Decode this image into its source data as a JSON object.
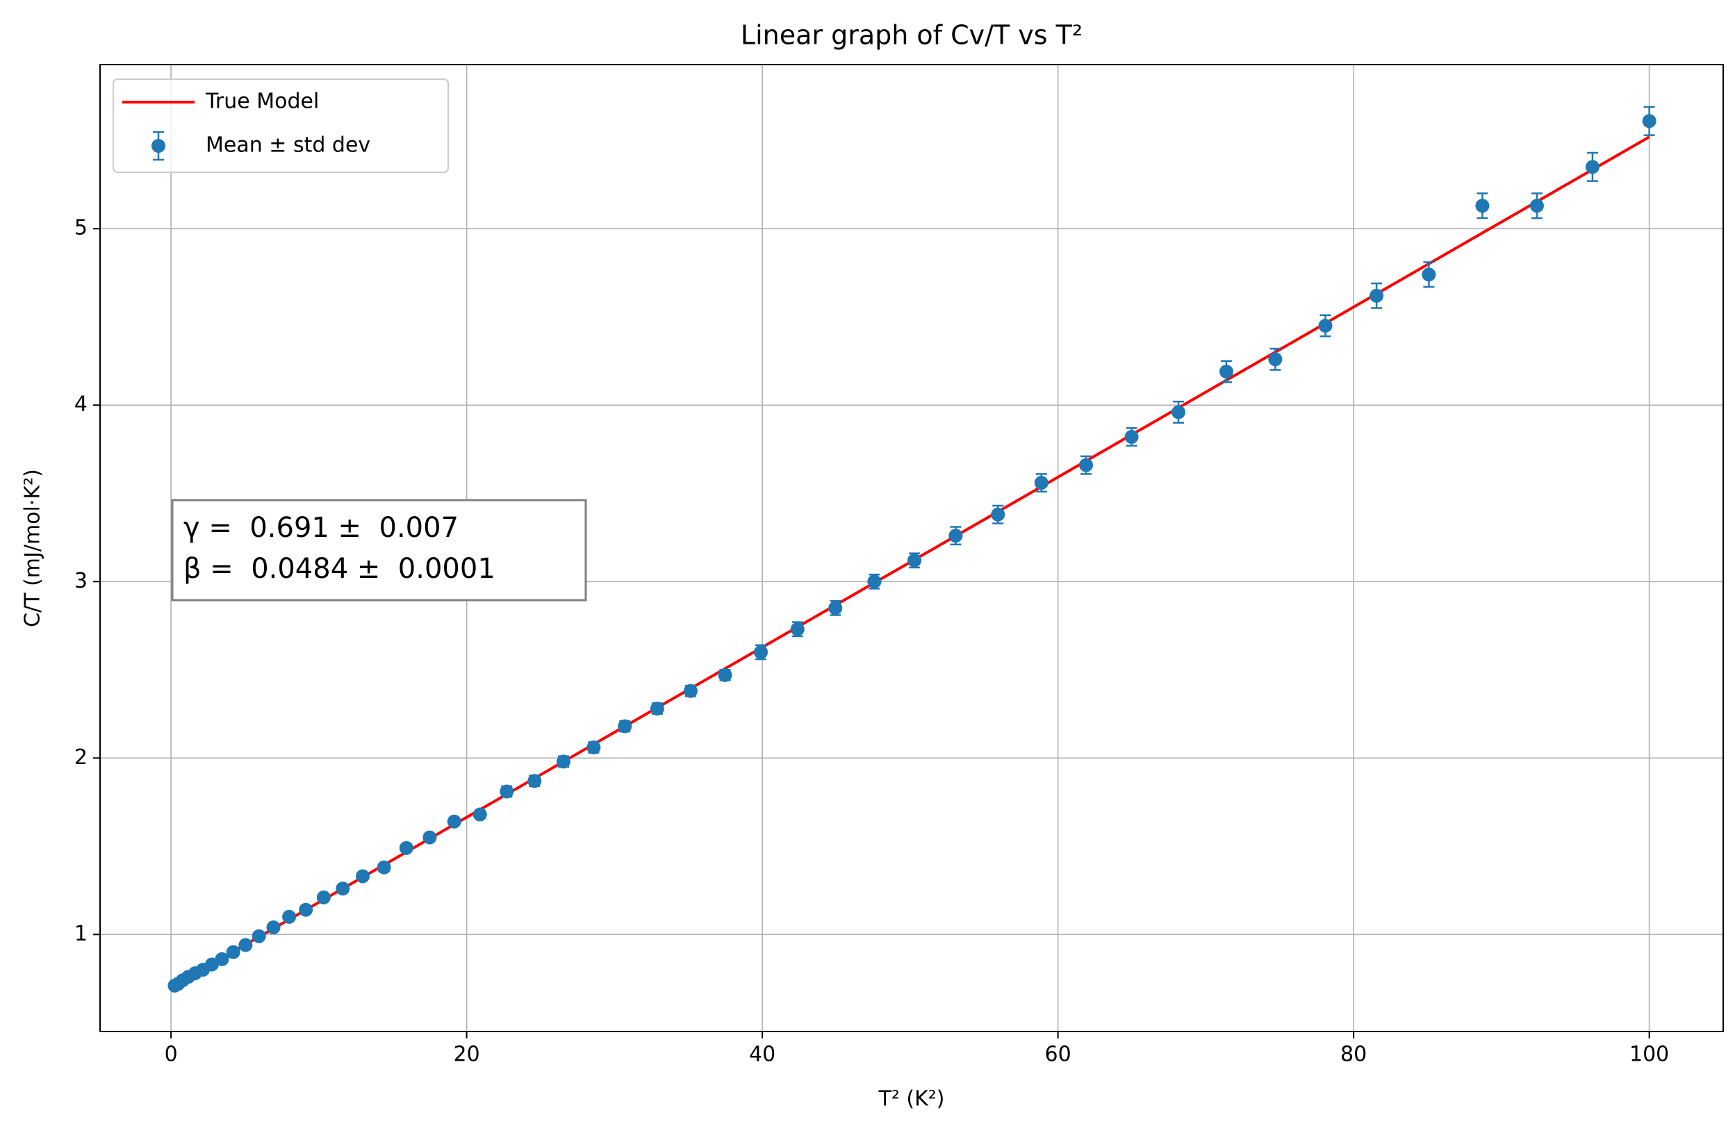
{
  "chart_data": {
    "type": "line",
    "title": "Linear graph of Cv/T vs T²",
    "xlabel": "T² (K²)",
    "ylabel": "C/T (mJ/mol·K²)",
    "xlim": [
      -4.8,
      105
    ],
    "ylim": [
      0.45,
      5.93
    ],
    "xticks": [
      0,
      20,
      40,
      60,
      80,
      100
    ],
    "yticks": [
      1,
      2,
      3,
      4,
      5
    ],
    "grid": true,
    "legend": "upper left",
    "series": [
      {
        "name": "True Model",
        "type": "line",
        "color": "#ff0000",
        "x": [
          0.25,
          100
        ],
        "values": [
          0.712,
          5.52
        ]
      },
      {
        "name": "Mean ± std dev",
        "type": "errorbar",
        "color": "#1f77b4",
        "x": [
          0.25,
          0.48,
          0.79,
          1.17,
          1.63,
          2.16,
          2.77,
          3.45,
          4.21,
          5.04,
          5.95,
          6.93,
          7.99,
          9.12,
          10.33,
          11.62,
          12.97,
          14.41,
          15.92,
          17.5,
          19.16,
          20.9,
          22.71,
          24.59,
          26.55,
          28.59,
          30.7,
          32.89,
          35.15,
          37.48,
          39.9,
          42.38,
          44.94,
          47.58,
          50.29,
          53.08,
          55.94,
          58.88,
          61.9,
          64.98,
          68.15,
          71.39,
          74.7,
          78.09,
          81.55,
          85.09,
          88.71,
          92.4,
          96.16,
          100
        ],
        "values": [
          0.71,
          0.72,
          0.74,
          0.76,
          0.78,
          0.8,
          0.83,
          0.86,
          0.9,
          0.94,
          0.99,
          1.04,
          1.1,
          1.14,
          1.21,
          1.26,
          1.33,
          1.38,
          1.49,
          1.55,
          1.64,
          1.68,
          1.81,
          1.87,
          1.98,
          2.06,
          2.18,
          2.28,
          2.38,
          2.47,
          2.6,
          2.73,
          2.85,
          3.0,
          3.12,
          3.26,
          3.38,
          3.56,
          3.66,
          3.82,
          3.96,
          4.19,
          4.26,
          4.45,
          4.62,
          4.74,
          5.13,
          5.13,
          5.35,
          5.61
        ],
        "errors": [
          0.01,
          0.01,
          0.01,
          0.01,
          0.01,
          0.01,
          0.01,
          0.01,
          0.01,
          0.01,
          0.01,
          0.01,
          0.02,
          0.02,
          0.02,
          0.02,
          0.02,
          0.02,
          0.02,
          0.02,
          0.02,
          0.02,
          0.03,
          0.03,
          0.03,
          0.03,
          0.03,
          0.03,
          0.03,
          0.03,
          0.04,
          0.04,
          0.04,
          0.04,
          0.04,
          0.05,
          0.05,
          0.05,
          0.05,
          0.05,
          0.06,
          0.06,
          0.06,
          0.06,
          0.07,
          0.07,
          0.07,
          0.07,
          0.08,
          0.08
        ]
      }
    ],
    "annotation": [
      "γ =  0.691 ±  0.007",
      "β =  0.0484 ±  0.0001"
    ]
  }
}
